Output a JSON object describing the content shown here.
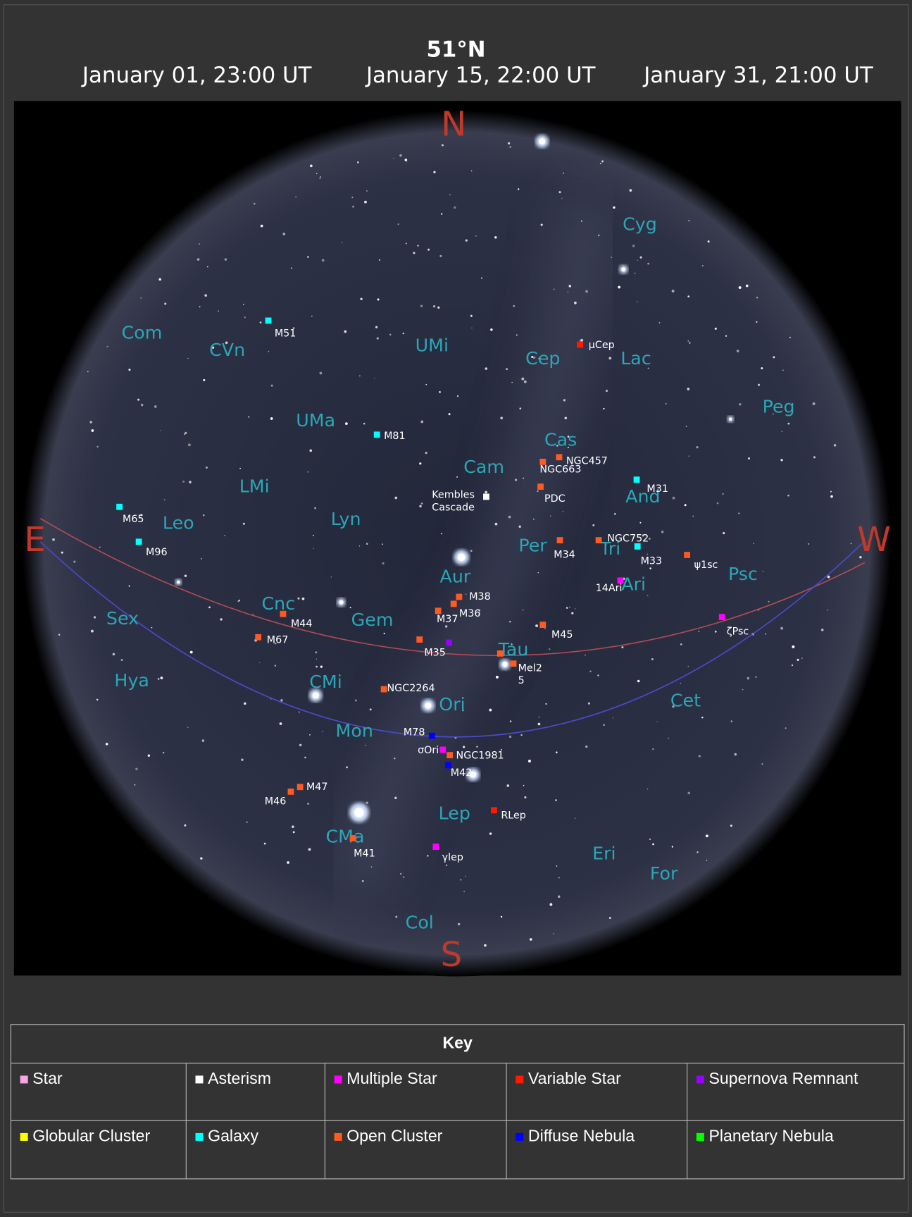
{
  "header": {
    "latitude": "51°N",
    "times": [
      "January 01, 23:00 UT",
      "January 15, 22:00 UT",
      "January 31, 21:00 UT"
    ]
  },
  "sky": {
    "compass": {
      "north": "N",
      "east": "E",
      "south": "S",
      "west": "W"
    },
    "constellations": [
      "Cyg",
      "Com",
      "CVn",
      "UMi",
      "Cep",
      "Lac",
      "Peg",
      "UMa",
      "Cas",
      "Cam",
      "LMi",
      "And",
      "Leo",
      "Lyn",
      "Per",
      "Tri",
      "Psc",
      "Aur",
      "Ari",
      "Cnc",
      "Sex",
      "Gem",
      "Tau",
      "Hya",
      "CMi",
      "Ori",
      "Cet",
      "Mon",
      "Lep",
      "CMa",
      "Eri",
      "For",
      "Col"
    ],
    "objects": [
      {
        "label": "M51"
      },
      {
        "label": "µCep"
      },
      {
        "label": "M81"
      },
      {
        "label": "NGC457"
      },
      {
        "label": "NGC663"
      },
      {
        "label": "M31"
      },
      {
        "label": "Kembles Cascade"
      },
      {
        "label": "PDC"
      },
      {
        "label": "M65"
      },
      {
        "label": "M96"
      },
      {
        "label": "M34"
      },
      {
        "label": "NGC752"
      },
      {
        "label": "M33"
      },
      {
        "label": "ψ1sc"
      },
      {
        "label": "14Ari"
      },
      {
        "label": "M38"
      },
      {
        "label": "M37"
      },
      {
        "label": "M36"
      },
      {
        "label": "M44"
      },
      {
        "label": "M45"
      },
      {
        "label": "ζPsc"
      },
      {
        "label": "M67"
      },
      {
        "label": "M35"
      },
      {
        "label": "Mel2 5"
      },
      {
        "label": "NGC2264"
      },
      {
        "label": "M78"
      },
      {
        "label": "σOri"
      },
      {
        "label": "NGC1981"
      },
      {
        "label": "M42"
      },
      {
        "label": "M47"
      },
      {
        "label": "M46"
      },
      {
        "label": "RLep"
      },
      {
        "label": "M41"
      },
      {
        "label": "γlep"
      }
    ]
  },
  "key": {
    "title": "Key",
    "items": [
      {
        "label": "Star",
        "color": "#f4a6e6"
      },
      {
        "label": "Asterism",
        "color": "#ffffff"
      },
      {
        "label": "Multiple Star",
        "color": "#ff00ff"
      },
      {
        "label": "Variable Star",
        "color": "#ff1a00"
      },
      {
        "label": "Supernova Remnant",
        "color": "#9900ff"
      },
      {
        "label": "Globular Cluster",
        "color": "#ffff00"
      },
      {
        "label": "Galaxy",
        "color": "#00ffff"
      },
      {
        "label": "Open Cluster",
        "color": "#ff5a22"
      },
      {
        "label": "Diffuse Nebula",
        "color": "#0000ff"
      },
      {
        "label": "Planetary Nebula",
        "color": "#00ff00"
      }
    ]
  }
}
